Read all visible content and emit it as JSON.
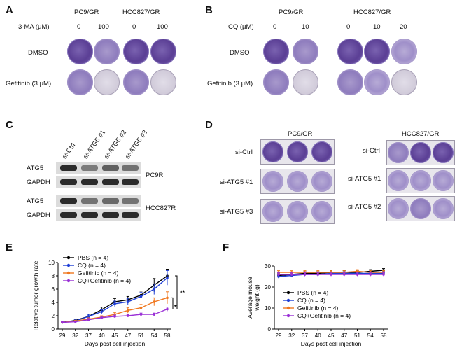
{
  "panelA": {
    "letter": "A",
    "cell1": "PC9/GR",
    "cell2": "HCC827/GR",
    "treatLabel": "3-MA (μM)",
    "doses": [
      "0",
      "100",
      "0",
      "100"
    ],
    "rows": [
      "DMSO",
      "Gefitinib (3 μM)"
    ]
  },
  "panelB": {
    "letter": "B",
    "cell1": "PC9/GR",
    "cell2": "HCC827/GR",
    "treatLabel": "CQ (μM)",
    "doses": [
      "0",
      "10",
      "0",
      "10",
      "20"
    ],
    "rows": [
      "DMSO",
      "Gefitinib (3 μM)"
    ]
  },
  "panelC": {
    "letter": "C",
    "lanes": [
      "si-Ctrl",
      "si-ATG5 #1",
      "si-ATG5 #2",
      "si-ATG5 #3"
    ],
    "rows": [
      "ATG5",
      "GAPDH",
      "ATG5",
      "GAPDH"
    ],
    "cells": [
      "PC9R",
      "HCC827R"
    ]
  },
  "panelD": {
    "letter": "D",
    "cell1": "PC9/GR",
    "cell2": "HCC827/GR",
    "rows1": [
      "si-Ctrl",
      "si-ATG5 #1",
      "si-ATG5 #3"
    ],
    "rows2": [
      "si-Ctrl",
      "si-ATG5 #1",
      "si-ATG5 #2"
    ]
  },
  "chart_data": [
    {
      "panel": "E",
      "type": "line",
      "ylabel": "Relative tumor growth rate",
      "xlabel": "Days post cell injection",
      "categories": [
        "29",
        "32",
        "37",
        "40",
        "45",
        "47",
        "51",
        "54",
        "58"
      ],
      "ylim": [
        0,
        10
      ],
      "yticks": [
        "0",
        "2",
        "4",
        "6",
        "8",
        "10"
      ],
      "series": [
        {
          "name": "PBS (n = 4)",
          "color": "#000000",
          "values": [
            1.0,
            1.3,
            1.9,
            2.9,
            4.1,
            4.4,
            5.1,
            6.6,
            8.0
          ],
          "err": [
            0.1,
            0.2,
            0.3,
            0.4,
            0.5,
            0.5,
            0.6,
            1.0,
            1.0
          ]
        },
        {
          "name": "CQ (n = 4)",
          "color": "#1f3fd6",
          "values": [
            1.0,
            1.2,
            1.9,
            2.6,
            3.8,
            4.1,
            4.9,
            6.0,
            7.7
          ],
          "err": [
            0.1,
            0.2,
            0.3,
            0.3,
            0.4,
            0.5,
            0.6,
            0.8,
            1.1
          ]
        },
        {
          "name": "Gefitinib (n = 4)",
          "color": "#f07820",
          "values": [
            1.0,
            1.2,
            1.5,
            1.8,
            2.2,
            2.8,
            3.2,
            4.1,
            4.7
          ],
          "err": [
            0.1,
            0.1,
            0.2,
            0.2,
            0.3,
            0.4,
            0.5,
            0.6,
            0.9
          ]
        },
        {
          "name": "CQ+Gefitinib (n = 4)",
          "color": "#9a30d6",
          "values": [
            1.0,
            1.1,
            1.4,
            1.7,
            1.9,
            2.0,
            2.2,
            2.2,
            3.0
          ],
          "err": [
            0.1,
            0.1,
            0.2,
            0.2,
            0.2,
            0.2,
            0.2,
            0.2,
            0.3
          ]
        }
      ],
      "annotations": [
        "**",
        "*"
      ]
    },
    {
      "panel": "F",
      "type": "line",
      "ylabel": "Average mouse weight (g)",
      "xlabel": "Days post cell injection",
      "categories": [
        "29",
        "32",
        "37",
        "40",
        "45",
        "47",
        "51",
        "54",
        "58"
      ],
      "ylim": [
        0,
        30
      ],
      "yticks": [
        "0",
        "10",
        "20",
        "30"
      ],
      "series": [
        {
          "name": "PBS (n = 4)",
          "color": "#000000",
          "values": [
            25.5,
            26.0,
            26.5,
            26.5,
            27.0,
            27.0,
            27.0,
            27.5,
            28.0
          ],
          "err": [
            0.8,
            0.8,
            0.8,
            0.8,
            0.8,
            0.8,
            0.8,
            0.8,
            0.8
          ]
        },
        {
          "name": "CQ (n = 4)",
          "color": "#1f3fd6",
          "values": [
            25.0,
            25.5,
            26.0,
            26.0,
            26.5,
            26.5,
            26.5,
            26.5,
            26.5
          ],
          "err": [
            0.8,
            0.8,
            0.8,
            0.8,
            0.8,
            0.8,
            0.8,
            0.8,
            0.8
          ]
        },
        {
          "name": "Gefitinib (n = 4)",
          "color": "#f07820",
          "values": [
            27.0,
            27.0,
            27.0,
            27.0,
            27.0,
            27.0,
            27.5,
            27.0,
            27.0
          ],
          "err": [
            0.8,
            0.8,
            0.8,
            0.8,
            0.8,
            0.8,
            0.8,
            0.8,
            0.8
          ]
        },
        {
          "name": "CQ+Gefitinib (n = 4)",
          "color": "#9a30d6",
          "values": [
            26.0,
            26.0,
            26.0,
            26.0,
            26.0,
            26.0,
            26.0,
            26.0,
            26.0
          ],
          "err": [
            0.8,
            0.8,
            0.8,
            0.8,
            0.8,
            0.8,
            0.8,
            0.8,
            0.8
          ]
        }
      ]
    }
  ]
}
